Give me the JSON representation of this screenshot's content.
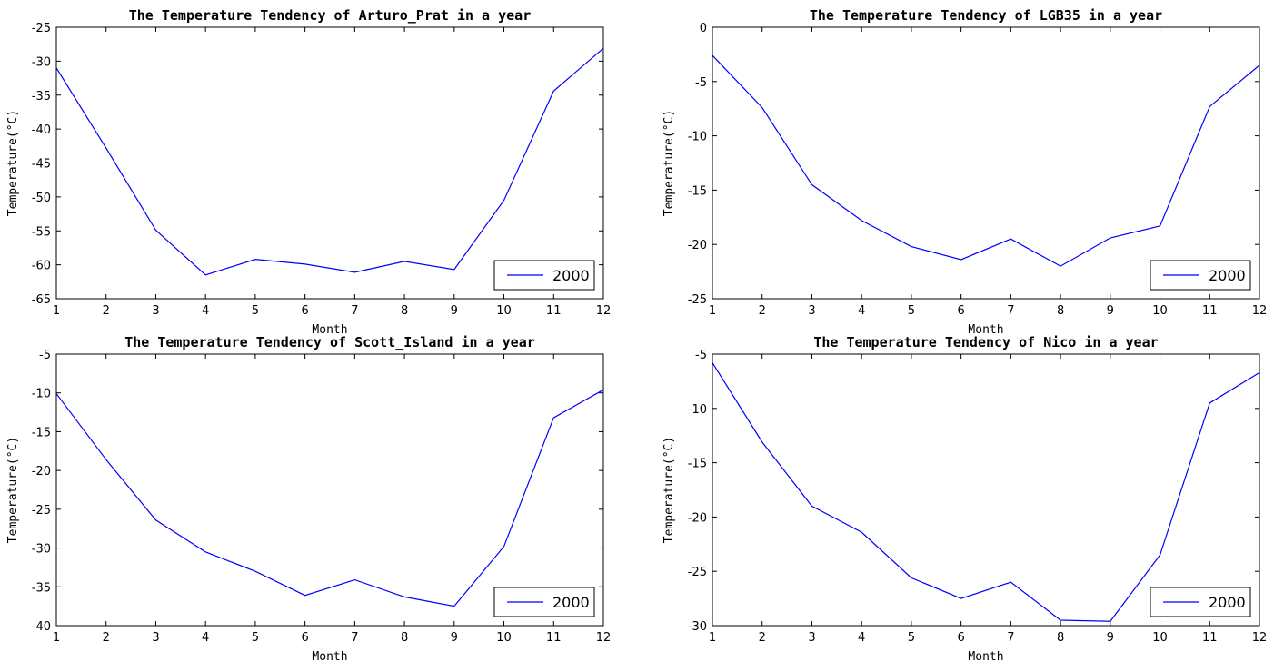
{
  "chart_data": [
    {
      "type": "line",
      "title": "The Temperature Tendency of Arturo_Prat in a year",
      "xlabel": "Month",
      "ylabel": "Temperature(°C)",
      "x": [
        1,
        2,
        3,
        4,
        5,
        6,
        7,
        8,
        9,
        10,
        11,
        12
      ],
      "xticks": [
        "1",
        "2",
        "3",
        "4",
        "5",
        "6",
        "7",
        "8",
        "9",
        "10",
        "11",
        "12"
      ],
      "ylim": [
        -65,
        -25
      ],
      "yticks": [
        "-25",
        "-30",
        "-35",
        "-40",
        "-45",
        "-50",
        "-55",
        "-60",
        "-65"
      ],
      "yticks_values": [
        -25,
        -30,
        -35,
        -40,
        -45,
        -50,
        -55,
        -60,
        -65
      ],
      "series": [
        {
          "name": "2000",
          "color": "#0000ff",
          "values": [
            -31.0,
            -42.8,
            -54.9,
            -61.5,
            -59.2,
            -59.9,
            -61.1,
            -59.5,
            -60.7,
            -50.5,
            -34.4,
            -28.1
          ]
        }
      ],
      "legend": "lower-right",
      "grid": false
    },
    {
      "type": "line",
      "title": "The Temperature Tendency of LGB35 in a year",
      "xlabel": "Month",
      "ylabel": "Temperature(°C)",
      "x": [
        1,
        2,
        3,
        4,
        5,
        6,
        7,
        8,
        9,
        10,
        11,
        12
      ],
      "xticks": [
        "1",
        "2",
        "3",
        "4",
        "5",
        "6",
        "7",
        "8",
        "9",
        "10",
        "11",
        "12"
      ],
      "ylim": [
        -25,
        0
      ],
      "yticks": [
        "0",
        "-5",
        "-10",
        "-15",
        "-20",
        "-25"
      ],
      "yticks_values": [
        0,
        -5,
        -10,
        -15,
        -20,
        -25
      ],
      "series": [
        {
          "name": "2000",
          "color": "#0000ff",
          "values": [
            -2.6,
            -7.4,
            -14.5,
            -17.8,
            -20.2,
            -21.4,
            -19.5,
            -22.0,
            -19.4,
            -18.3,
            -7.3,
            -3.5
          ]
        }
      ],
      "legend": "lower-right",
      "grid": false
    },
    {
      "type": "line",
      "title": "The Temperature Tendency of Scott_Island in a year",
      "xlabel": "Month",
      "ylabel": "Temperature(°C)",
      "x": [
        1,
        2,
        3,
        4,
        5,
        6,
        7,
        8,
        9,
        10,
        11,
        12
      ],
      "xticks": [
        "1",
        "2",
        "3",
        "4",
        "5",
        "6",
        "7",
        "8",
        "9",
        "10",
        "11",
        "12"
      ],
      "ylim": [
        -40,
        -5
      ],
      "yticks": [
        "-5",
        "-10",
        "-15",
        "-20",
        "-25",
        "-30",
        "-35",
        "-40"
      ],
      "yticks_values": [
        -5,
        -10,
        -15,
        -20,
        -25,
        -30,
        -35,
        -40
      ],
      "series": [
        {
          "name": "2000",
          "color": "#0000ff",
          "values": [
            -10.1,
            -18.6,
            -26.4,
            -30.5,
            -33.0,
            -36.1,
            -34.1,
            -36.3,
            -37.5,
            -29.8,
            -13.2,
            -9.6
          ]
        }
      ],
      "legend": "lower-right",
      "grid": false
    },
    {
      "type": "line",
      "title": "The Temperature Tendency of Nico in a year",
      "xlabel": "Month",
      "ylabel": "Temperature(°C)",
      "x": [
        1,
        2,
        3,
        4,
        5,
        6,
        7,
        8,
        9,
        10,
        11,
        12
      ],
      "xticks": [
        "1",
        "2",
        "3",
        "4",
        "5",
        "6",
        "7",
        "8",
        "9",
        "10",
        "11",
        "12"
      ],
      "ylim": [
        -30,
        -5
      ],
      "yticks": [
        "-5",
        "-10",
        "-15",
        "-20",
        "-25",
        "-30"
      ],
      "yticks_values": [
        -5,
        -10,
        -15,
        -20,
        -25,
        -30
      ],
      "series": [
        {
          "name": "2000",
          "color": "#0000ff",
          "values": [
            -5.8,
            -13.1,
            -19.0,
            -21.4,
            -25.6,
            -27.5,
            -26.0,
            -29.5,
            -29.6,
            -23.5,
            -9.5,
            -6.7
          ]
        }
      ],
      "legend": "lower-right",
      "grid": false
    }
  ]
}
